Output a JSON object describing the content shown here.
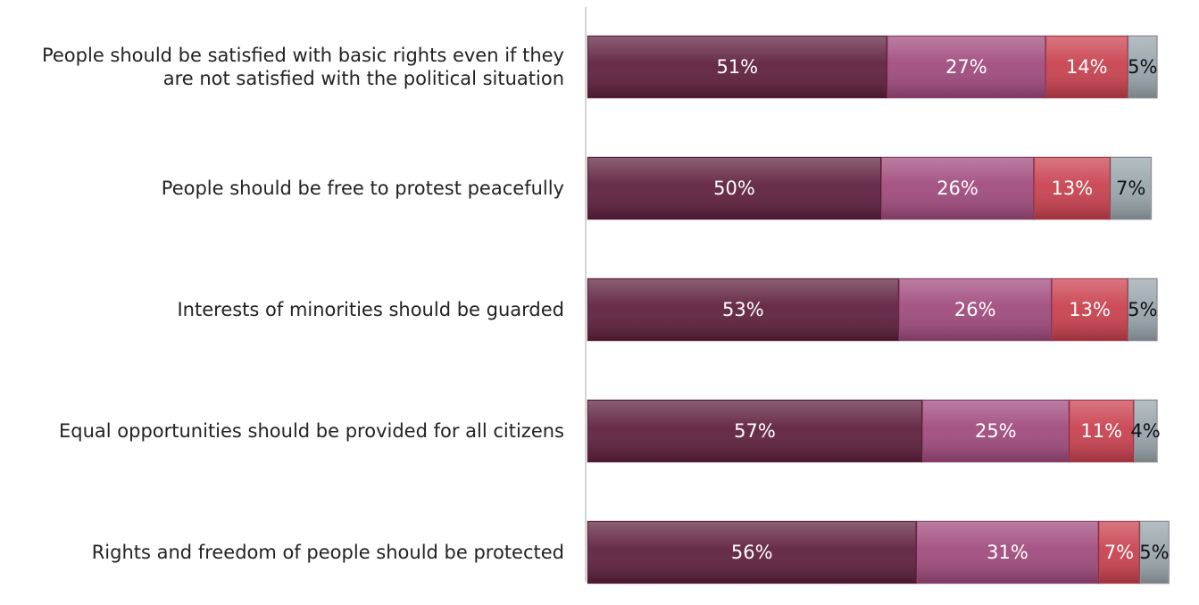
{
  "chart_data": {
    "type": "bar",
    "orientation": "horizontal",
    "stacked": true,
    "categories": [
      "People should be satisfied with basic rights even if they are not satisfied with the political situation",
      "People should be free to protest peacefully",
      "Interests of minorities should be guarded",
      "Equal opportunities should be provided for all citizens",
      "Rights and freedom of people should be protected"
    ],
    "category_label_lines": [
      [
        "People should be satisfied with basic rights even if they",
        "are not satisfied with the political situation"
      ],
      [
        "People should be free to protest peacefully"
      ],
      [
        "Interests of minorities should be guarded"
      ],
      [
        "Equal opportunities should be provided for all citizens"
      ],
      [
        "Rights and freedom of people should be protected"
      ]
    ],
    "series": [
      {
        "values": [
          51,
          50,
          53,
          57,
          56
        ],
        "labels": [
          "51%",
          "50%",
          "53%",
          "57%",
          "56%"
        ],
        "color": "#5e1f3c",
        "label_color": "#ffffff"
      },
      {
        "values": [
          27,
          26,
          26,
          25,
          31
        ],
        "labels": [
          "27%",
          "26%",
          "26%",
          "25%",
          "31%"
        ],
        "color": "#a04a7c",
        "label_color": "#ffffff"
      },
      {
        "values": [
          14,
          13,
          13,
          11,
          7
        ],
        "labels": [
          "14%",
          "13%",
          "13%",
          "11%",
          "7%"
        ],
        "color": "#c9404e",
        "label_color": "#ffffff"
      },
      {
        "values": [
          5,
          7,
          5,
          4,
          5
        ],
        "labels": [
          "5%",
          "7%",
          "5%",
          "4%",
          "5%"
        ],
        "color": "#98a5ab",
        "label_color": "#111111"
      }
    ],
    "xlim": [
      0,
      100
    ],
    "grid": false,
    "legend": "none"
  }
}
